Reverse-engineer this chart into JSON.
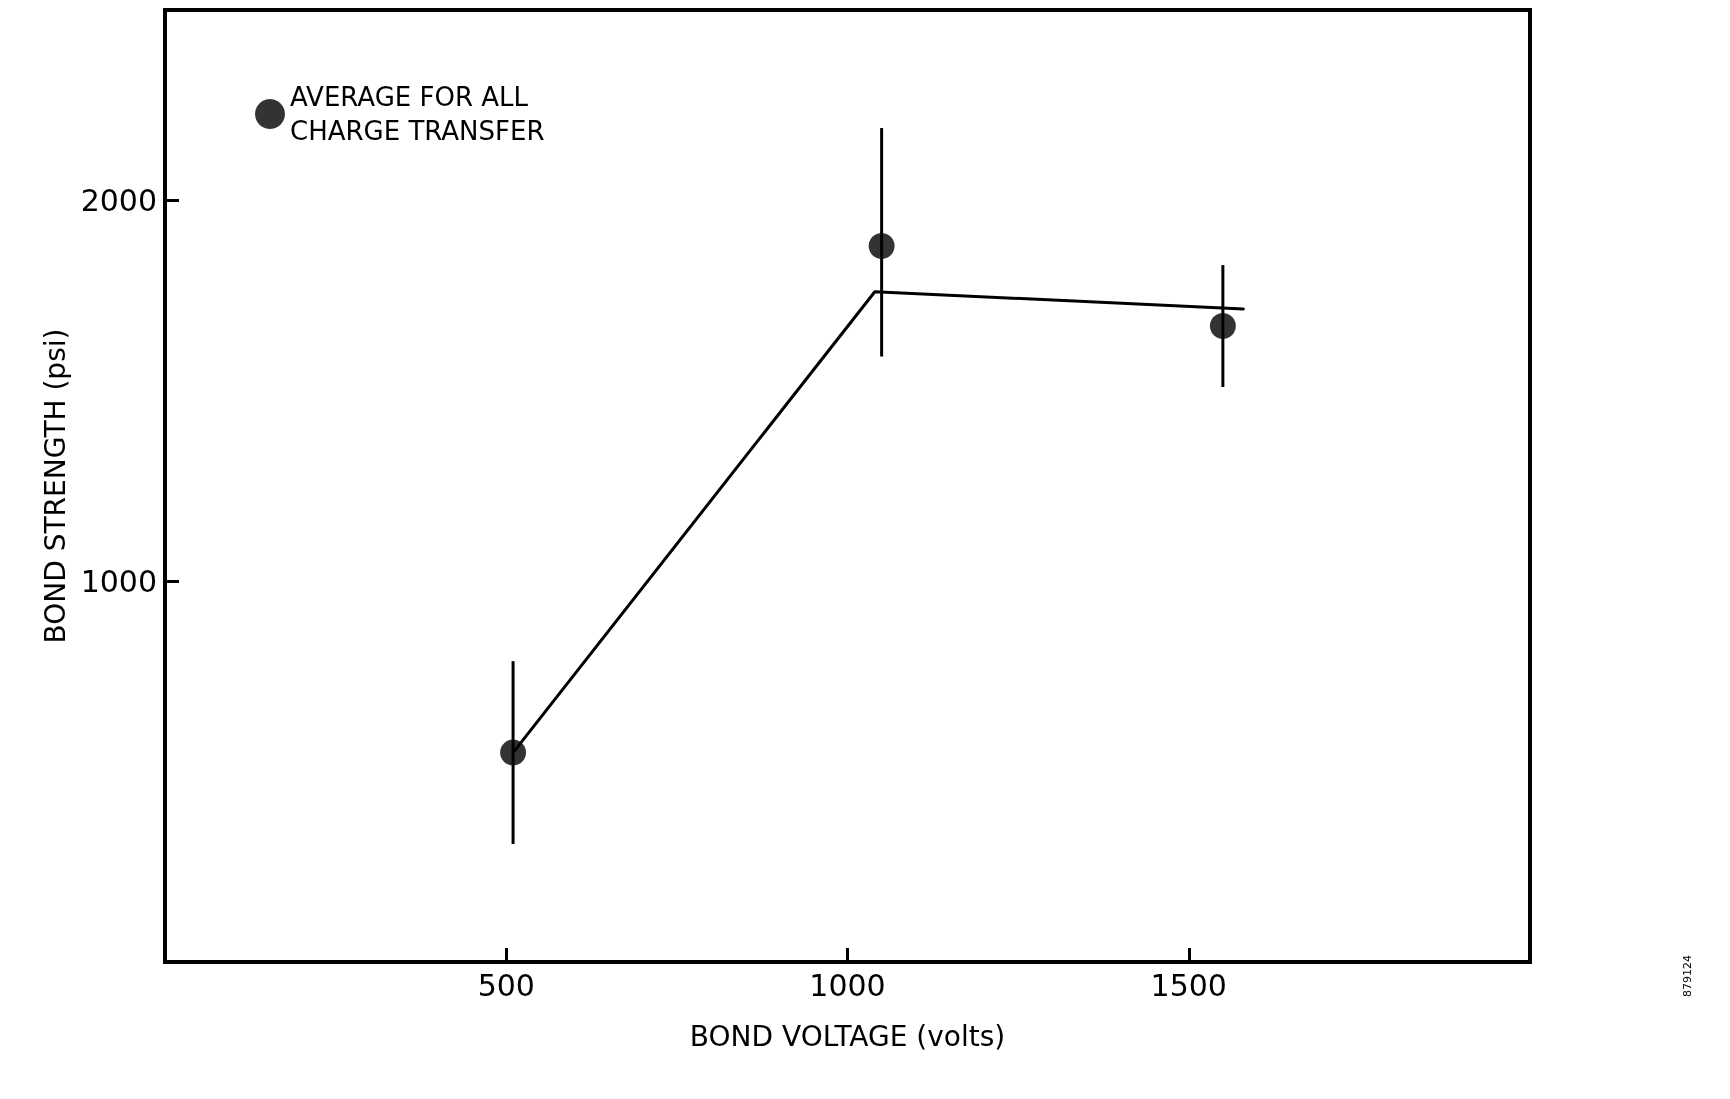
{
  "chart_data": {
    "type": "scatter",
    "xlabel": "BOND VOLTAGE (volts)",
    "ylabel": "BOND STRENGTH (psi)",
    "xlim": [
      0,
      2000
    ],
    "xticks": [
      500,
      1000,
      1500
    ],
    "ylim": [
      0,
      2500
    ],
    "yticks": [
      1000,
      2000
    ],
    "grid": false,
    "legend": "top left",
    "marker": "circle",
    "series": [
      {
        "name": "AVERAGE FOR ALL\nCHARGE TRANSFER",
        "color": "#000000",
        "x": [
          510,
          1050,
          1550
        ],
        "values": [
          550,
          1880,
          1670
        ],
        "errors": [
          240,
          [
            1590,
            2190
          ],
          160
        ]
      },
      {
        "type": "line",
        "color": "#000000",
        "x": [
          510,
          1040,
          1580
        ],
        "values": [
          550,
          1760,
          1715
        ],
        "marker": "none",
        "line_style": "solid"
      }
    ],
    "annotations": [
      "879124"
    ]
  }
}
